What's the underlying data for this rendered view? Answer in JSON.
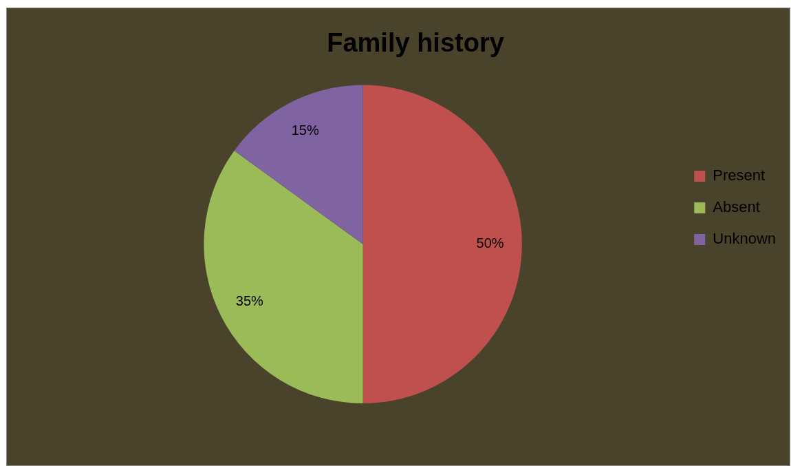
{
  "chart_data": {
    "type": "pie",
    "title": "Family history",
    "categories": [
      "Present",
      "Absent",
      "Unknown"
    ],
    "values": [
      50,
      35,
      15
    ],
    "colors": [
      "#c0504d",
      "#9bbb59",
      "#8064a2"
    ],
    "value_labels": [
      "50%",
      "35%",
      "15%"
    ],
    "legend": "right"
  }
}
